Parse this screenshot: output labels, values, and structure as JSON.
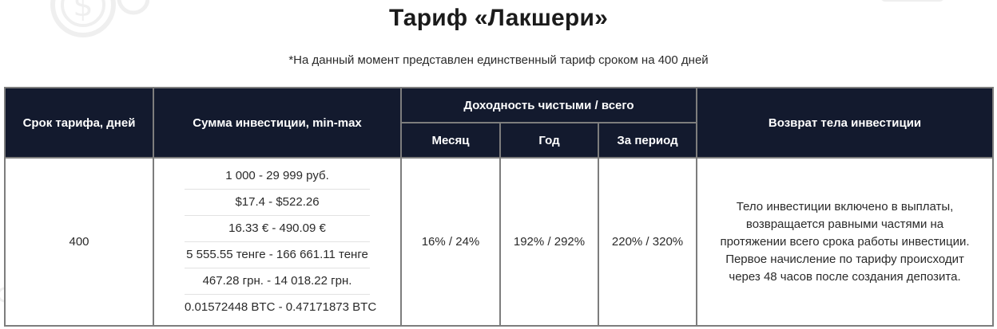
{
  "title": "Тариф «Лакшери»",
  "subtitle": "*На данный момент представлен единственный тариф сроком на 400 дней",
  "table": {
    "headers": {
      "term": "Срок тарифа, дней",
      "amount": "Сумма инвестиции, min-max",
      "yield": "Доходность чистыми / всего",
      "yield_month": "Месяц",
      "yield_year": "Год",
      "yield_period": "За период",
      "return": "Возврат тела инвестиции"
    },
    "row": {
      "term": "400",
      "amounts": [
        "1 000 - 29 999 руб.",
        "$17.4 - $522.26",
        "16.33 € - 490.09 €",
        "5 555.55 тенге - 166 661.11 тенге",
        "467.28 грн. - 14 018.22 грн.",
        "0.01572448 BTC - 0.47171873 BTC"
      ],
      "yield_month": "16% / 24%",
      "yield_year": "192% / 292%",
      "yield_period": "220% / 320%",
      "return_lines": [
        "Тело инвестиции включено в выплаты,",
        "возвращается равными частями на",
        "протяжении всего срока работы инвестиции.",
        "Первое начисление по тарифу происходит",
        "через 48 часов после создания депозита."
      ]
    }
  },
  "colors": {
    "header_bg": "#131a2e",
    "header_text": "#ffffff",
    "border": "#7d7d7d"
  },
  "icons": [
    "dollar-coin-gear-icon",
    "decor-shape-icon",
    "wallet-icon"
  ]
}
